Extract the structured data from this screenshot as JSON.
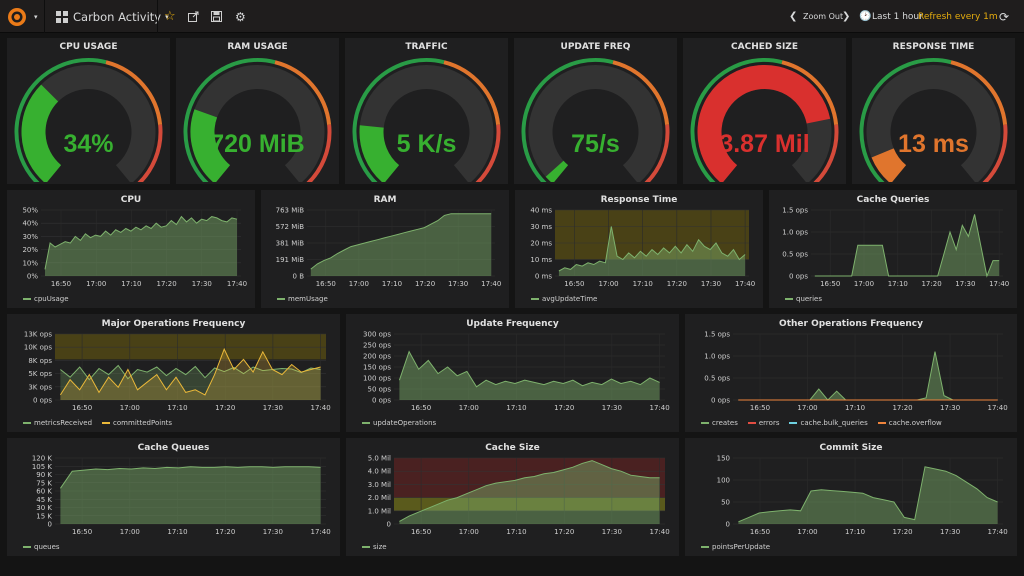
{
  "topbar": {
    "dashboard_title": "Carbon Activity",
    "zoom_out": "Zoom Out",
    "time_range": "Last 1 hour",
    "refresh": "Refresh every 1m"
  },
  "colors": {
    "green": "#299c46",
    "fill": "#629e51",
    "yellow": "#e5ac0e",
    "orange": "#e0752d",
    "red": "#d44a3a",
    "track": "#333333"
  },
  "gauges": [
    {
      "title": "CPU USAGE",
      "value_text": "34%",
      "fraction": 0.34,
      "color": "#37b030",
      "text_color": "#37b030"
    },
    {
      "title": "RAM USAGE",
      "value_text": "720 MiB",
      "fraction": 0.25,
      "color": "#37b030",
      "text_color": "#37b030"
    },
    {
      "title": "TRAFFIC",
      "value_text": "5 K/s",
      "fraction": 0.2,
      "color": "#37b030",
      "text_color": "#37b030"
    },
    {
      "title": "UPDATE FREQ",
      "value_text": "75/s",
      "fraction": 0.03,
      "color": "#37b030",
      "text_color": "#37b030"
    },
    {
      "title": "CACHED SIZE",
      "value_text": "3.87 Mil",
      "fraction": 0.78,
      "color": "#d9302e",
      "text_color": "#d9302e"
    },
    {
      "title": "RESPONSE TIME",
      "value_text": "13 ms",
      "fraction": 0.1,
      "color": "#e0752d",
      "text_color": "#e0752d"
    }
  ],
  "chart_data": [
    {
      "type": "area",
      "title": "CPU",
      "x_ticks": [
        "16:50",
        "17:00",
        "17:10",
        "17:20",
        "17:30",
        "17:40"
      ],
      "y_ticks": [
        "0%",
        "10%",
        "20%",
        "30%",
        "40%",
        "50%"
      ],
      "ylim": [
        0,
        50
      ],
      "series": [
        {
          "name": "cpuUsage",
          "color": "#7eb26d",
          "values": [
            5,
            25,
            22,
            24,
            26,
            25,
            30,
            27,
            32,
            29,
            31,
            30,
            34,
            31,
            35,
            33,
            36,
            34,
            37,
            35,
            38,
            36,
            40,
            37,
            38,
            42,
            39,
            45,
            41,
            44,
            40,
            43,
            42,
            45,
            44,
            42,
            41,
            44,
            43
          ]
        }
      ]
    },
    {
      "type": "area",
      "title": "RAM",
      "x_ticks": [
        "16:50",
        "17:00",
        "17:10",
        "17:20",
        "17:30",
        "17:40"
      ],
      "y_ticks": [
        "0 B",
        "191 MiB",
        "381 MiB",
        "572 MiB",
        "763 MiB"
      ],
      "ylim": [
        0,
        763
      ],
      "series": [
        {
          "name": "memUsage",
          "color": "#7eb26d",
          "values": [
            80,
            140,
            180,
            210,
            260,
            300,
            340,
            360,
            380,
            400,
            420,
            440,
            460,
            480,
            500,
            520,
            540,
            560,
            600,
            640,
            700,
            720,
            720,
            720,
            720,
            720,
            720,
            720
          ]
        }
      ]
    },
    {
      "type": "area",
      "title": "Response Time",
      "x_ticks": [
        "16:50",
        "17:00",
        "17:10",
        "17:20",
        "17:30",
        "17:40"
      ],
      "y_ticks": [
        "0 ms",
        "10 ms",
        "20 ms",
        "30 ms",
        "40 ms"
      ],
      "ylim": [
        0,
        40
      ],
      "threshold_band": [
        10,
        40
      ],
      "series": [
        {
          "name": "avgUpdateTime",
          "color": "#7eb26d",
          "values": [
            3,
            5,
            4,
            7,
            6,
            8,
            7,
            9,
            8,
            30,
            12,
            10,
            14,
            11,
            15,
            12,
            16,
            13,
            17,
            14,
            18,
            14,
            19,
            15,
            22,
            18,
            16,
            20,
            14,
            12,
            16,
            10,
            13
          ]
        }
      ]
    },
    {
      "type": "area",
      "title": "Cache Queries",
      "x_ticks": [
        "16:50",
        "17:00",
        "17:10",
        "17:20",
        "17:30",
        "17:40"
      ],
      "y_ticks": [
        "0 ops",
        "0.5 ops",
        "1.0 ops",
        "1.5 ops"
      ],
      "ylim": [
        0,
        1.5
      ],
      "series": [
        {
          "name": "queries",
          "color": "#7eb26d",
          "values": [
            0,
            0,
            0,
            0,
            0,
            0,
            0,
            0.7,
            0.7,
            0.7,
            0.7,
            0.7,
            0,
            0,
            0,
            0,
            0,
            0,
            0,
            0,
            0,
            0.5,
            1,
            0.6,
            1.15,
            0.9,
            1.4,
            0.7,
            0,
            0.35,
            0.35
          ]
        }
      ]
    },
    {
      "type": "line",
      "title": "Major Operations Frequency",
      "x_ticks": [
        "16:50",
        "17:00",
        "17:10",
        "17:20",
        "17:30",
        "17:40"
      ],
      "y_ticks": [
        "0 ops",
        "3K ops",
        "5K ops",
        "8K ops",
        "10K ops",
        "13K ops"
      ],
      "ylim": [
        0,
        13000
      ],
      "threshold_band": [
        8000,
        13000
      ],
      "series": [
        {
          "name": "metricsReceived",
          "color": "#7eb26d",
          "values": [
            6000,
            4500,
            6500,
            4000,
            6200,
            5000,
            6800,
            4200,
            6000,
            5500,
            6500,
            4800,
            6200,
            5000,
            6600,
            4400,
            6300,
            5600,
            6400,
            5200,
            6500,
            5800,
            6000,
            6200,
            6100,
            5400,
            6300,
            6000
          ]
        },
        {
          "name": "committedPoints",
          "color": "#eab839",
          "values": [
            1000,
            4000,
            2000,
            5000,
            1500,
            4500,
            2500,
            6000,
            2000,
            3500,
            5000,
            2000,
            4500,
            1500,
            2000,
            1000,
            5000,
            10000,
            6000,
            8000,
            5500,
            9500,
            6000,
            5000,
            7000,
            5500,
            6000,
            6500
          ]
        }
      ]
    },
    {
      "type": "area",
      "title": "Update Frequency",
      "x_ticks": [
        "16:50",
        "17:00",
        "17:10",
        "17:20",
        "17:30",
        "17:40"
      ],
      "y_ticks": [
        "0 ops",
        "50 ops",
        "100 ops",
        "150 ops",
        "200 ops",
        "250 ops",
        "300 ops"
      ],
      "ylim": [
        0,
        300
      ],
      "series": [
        {
          "name": "updateOperations",
          "color": "#7eb26d",
          "values": [
            90,
            220,
            140,
            180,
            120,
            150,
            110,
            130,
            60,
            90,
            70,
            85,
            75,
            90,
            80,
            70,
            85,
            75,
            90,
            65,
            80,
            70,
            95,
            75,
            85,
            70,
            100,
            80
          ]
        }
      ]
    },
    {
      "type": "line",
      "title": "Other Operations Frequency",
      "x_ticks": [
        "16:50",
        "17:00",
        "17:10",
        "17:20",
        "17:30",
        "17:40"
      ],
      "y_ticks": [
        "0 ops",
        "0.5 ops",
        "1.0 ops",
        "1.5 ops"
      ],
      "ylim": [
        0,
        1.5
      ],
      "series": [
        {
          "name": "creates",
          "color": "#7eb26d",
          "values": [
            0,
            0,
            0,
            0,
            0,
            0,
            0,
            0,
            0,
            0.25,
            0,
            0.2,
            0,
            0,
            0,
            0,
            0,
            0,
            0,
            0,
            0,
            0.05,
            1.1,
            0.1,
            0,
            0,
            0,
            0,
            0,
            0
          ]
        },
        {
          "name": "errors",
          "color": "#e24d42",
          "values": [
            0,
            0,
            0,
            0,
            0,
            0,
            0,
            0,
            0,
            0,
            0,
            0,
            0,
            0,
            0,
            0,
            0,
            0,
            0,
            0,
            0,
            0,
            0,
            0,
            0,
            0,
            0,
            0,
            0,
            0
          ]
        },
        {
          "name": "cache.bulk_queries",
          "color": "#6ed0e0",
          "values": [
            0,
            0,
            0,
            0,
            0,
            0,
            0,
            0,
            0,
            0,
            0,
            0,
            0,
            0,
            0,
            0,
            0,
            0,
            0,
            0,
            0,
            0,
            0,
            0,
            0,
            0,
            0,
            0,
            0,
            0
          ]
        },
        {
          "name": "cache.overflow",
          "color": "#ef843c",
          "values": [
            0,
            0,
            0,
            0,
            0,
            0,
            0,
            0,
            0,
            0,
            0,
            0,
            0,
            0,
            0,
            0,
            0,
            0,
            0,
            0,
            0,
            0,
            0,
            0,
            0,
            0,
            0,
            0,
            0,
            0
          ]
        }
      ]
    },
    {
      "type": "area",
      "title": "Cache Queues",
      "x_ticks": [
        "16:50",
        "17:00",
        "17:10",
        "17:20",
        "17:30",
        "17:40"
      ],
      "y_ticks": [
        "0",
        "15 K",
        "30 K",
        "45 K",
        "60 K",
        "75 K",
        "90 K",
        "105 K",
        "120 K"
      ],
      "ylim": [
        0,
        120
      ],
      "series": [
        {
          "name": "queues",
          "color": "#7eb26d",
          "values": [
            65,
            96,
            98,
            100,
            99,
            101,
            100,
            102,
            101,
            103,
            102,
            104,
            103,
            103,
            104,
            103,
            104,
            104,
            103,
            104,
            104,
            104,
            103
          ]
        }
      ]
    },
    {
      "type": "area",
      "title": "Cache Size",
      "x_ticks": [
        "16:50",
        "17:00",
        "17:10",
        "17:20",
        "17:30",
        "17:40"
      ],
      "y_ticks": [
        "0",
        "1.0 Mil",
        "2.0 Mil",
        "3.0 Mil",
        "4.0 Mil",
        "5.0 Mil"
      ],
      "ylim": [
        0,
        5
      ],
      "threshold_bands": [
        [
          1,
          2,
          "#8a8a1a"
        ],
        [
          2,
          5,
          "#6d2222"
        ]
      ],
      "series": [
        {
          "name": "size",
          "color": "#7eb26d",
          "values": [
            0.2,
            0.6,
            0.9,
            1.2,
            1.5,
            1.8,
            2.0,
            2.3,
            2.6,
            2.9,
            3.1,
            3.2,
            3.3,
            3.5,
            3.6,
            3.8,
            3.9,
            4.1,
            4.3,
            4.6,
            4.8,
            4.5,
            4.2,
            4.0,
            3.7,
            3.6,
            3.5,
            3.5
          ]
        }
      ]
    },
    {
      "type": "area",
      "title": "Commit Size",
      "x_ticks": [
        "16:50",
        "17:00",
        "17:10",
        "17:20",
        "17:30",
        "17:40"
      ],
      "y_ticks": [
        "0",
        "50",
        "100",
        "150"
      ],
      "ylim": [
        0,
        150
      ],
      "series": [
        {
          "name": "pointsPerUpdate",
          "color": "#7eb26d",
          "values": [
            5,
            15,
            25,
            28,
            30,
            32,
            30,
            75,
            78,
            76,
            74,
            72,
            70,
            60,
            55,
            50,
            15,
            10,
            130,
            125,
            120,
            110,
            95,
            80,
            60,
            50
          ]
        }
      ]
    }
  ]
}
